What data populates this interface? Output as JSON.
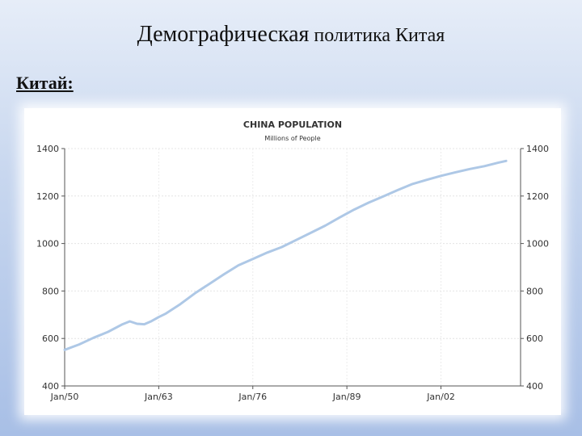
{
  "slide": {
    "title_part1": "Демографическая",
    "title_part2": " политика Китая",
    "subheading": "Китай:"
  },
  "chart_data": {
    "type": "line",
    "title": "CHINA POPULATION",
    "subtitle": "Millions of People",
    "xlabel": "",
    "ylabel": "",
    "x_ticks": [
      "Jan/50",
      "Jan/63",
      "Jan/76",
      "Jan/89",
      "Jan/02"
    ],
    "y_ticks": [
      400,
      600,
      800,
      1000,
      1200,
      1400
    ],
    "ylim": [
      400,
      1400
    ],
    "xlim": [
      1950,
      2013
    ],
    "grid": true,
    "legend": "none",
    "line_color": "#aec8e6",
    "series": [
      {
        "x": [
          1950,
          1952,
          1954,
          1956,
          1958,
          1959,
          1960,
          1961,
          1962,
          1963,
          1964,
          1966,
          1968,
          1970,
          1972,
          1974,
          1976,
          1978,
          1980,
          1982,
          1984,
          1986,
          1988,
          1990,
          1992,
          1994,
          1996,
          1998,
          2000,
          2002,
          2004,
          2006,
          2008,
          2010,
          2011
        ],
        "values": [
          552,
          575,
          603,
          628,
          660,
          672,
          662,
          660,
          673,
          690,
          705,
          745,
          790,
          830,
          870,
          908,
          935,
          962,
          985,
          1015,
          1045,
          1075,
          1110,
          1143,
          1172,
          1198,
          1225,
          1250,
          1268,
          1285,
          1300,
          1314,
          1326,
          1341,
          1348
        ]
      }
    ]
  }
}
